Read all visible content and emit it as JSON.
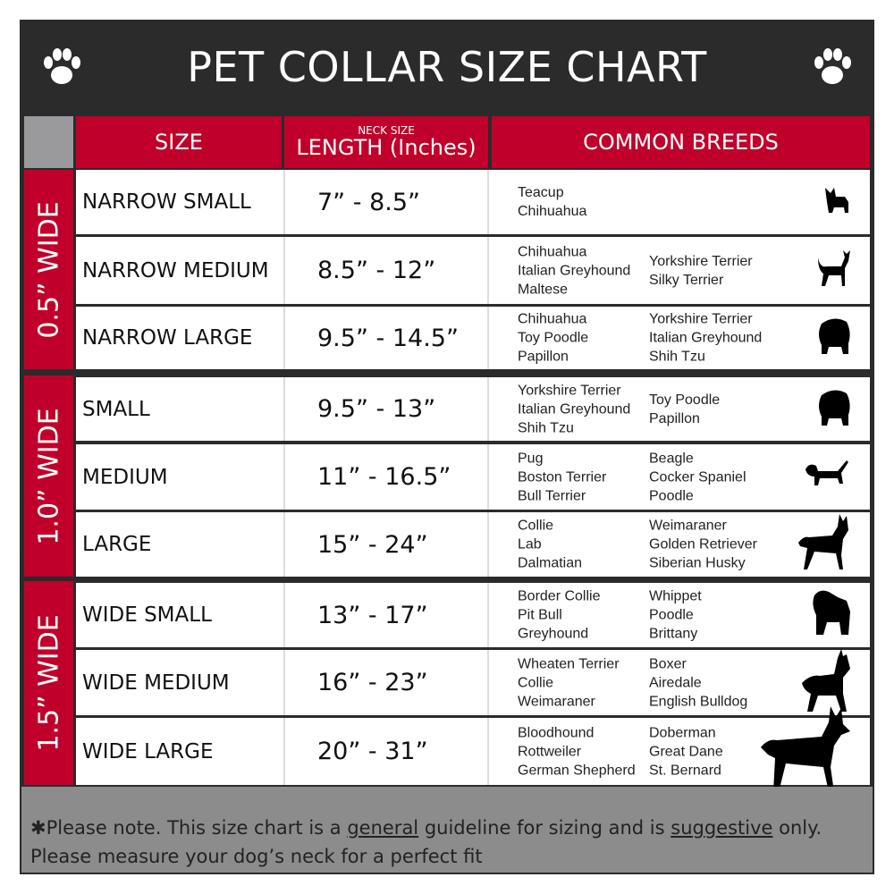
{
  "title": "PET COLLAR SIZE CHART",
  "colors": {
    "brand_red": "#c0002a",
    "frame_dark": "#2b2b2b",
    "footer_gray": "#8c8c8c"
  },
  "header": {
    "size": "SIZE",
    "neck_size": "NECK SIZE",
    "length": "LENGTH (Inches)",
    "breeds": "COMMON BREEDS"
  },
  "groups": [
    {
      "label": "0.5” WIDE",
      "rows": [
        {
          "size": "NARROW SMALL",
          "length": "7” - 8.5”",
          "breeds_col1": [
            "Teacup",
            "Chihuahua"
          ],
          "breeds_col2": [],
          "icon": "yorkie-silhouette-icon"
        },
        {
          "size": "NARROW MEDIUM",
          "length": "8.5” - 12”",
          "breeds_col1": [
            "Chihuahua",
            "Italian Greyhound",
            "Maltese"
          ],
          "breeds_col2": [
            "Yorkshire Terrier",
            "Silky Terrier"
          ],
          "icon": "chihuahua-silhouette-icon"
        },
        {
          "size": "NARROW LARGE",
          "length": "9.5” - 14.5”",
          "breeds_col1": [
            "Chihuahua",
            "Toy Poodle",
            "Papillon"
          ],
          "breeds_col2": [
            "Yorkshire Terrier",
            "Italian Greyhound",
            "Shih Tzu"
          ],
          "icon": "pomeranian-silhouette-icon"
        }
      ]
    },
    {
      "label": "1.0” WIDE",
      "rows": [
        {
          "size": "SMALL",
          "length": "9.5” - 13”",
          "breeds_col1": [
            "Yorkshire Terrier",
            "Italian Greyhound",
            "Shih Tzu"
          ],
          "breeds_col2": [
            "Toy Poodle",
            "Papillon"
          ],
          "icon": "pomeranian-silhouette-icon"
        },
        {
          "size": "MEDIUM",
          "length": "11” - 16.5”",
          "breeds_col1": [
            "Pug",
            "Boston Terrier",
            "Bull Terrier"
          ],
          "breeds_col2": [
            "Beagle",
            "Cocker Spaniel",
            "Poodle"
          ],
          "icon": "dachshund-silhouette-icon"
        },
        {
          "size": "LARGE",
          "length": "15” - 24”",
          "breeds_col1": [
            "Collie",
            "Lab",
            "Dalmatian"
          ],
          "breeds_col2": [
            "Weimaraner",
            "Golden Retriever",
            "Siberian Husky"
          ],
          "icon": "shepherd-silhouette-icon"
        }
      ]
    },
    {
      "label": "1.5” WIDE",
      "rows": [
        {
          "size": "WIDE SMALL",
          "length": "13” - 17”",
          "breeds_col1": [
            "Border Collie",
            "Pit Bull",
            "Greyhound"
          ],
          "breeds_col2": [
            "Whippet",
            "Poodle",
            "Brittany"
          ],
          "icon": "bulldog-silhouette-icon"
        },
        {
          "size": "WIDE MEDIUM",
          "length": "16” - 23”",
          "breeds_col1": [
            "Wheaten Terrier",
            "Collie",
            "Weimaraner"
          ],
          "breeds_col2": [
            "Boxer",
            "Airedale",
            "English Bulldog"
          ],
          "icon": "pitbull-silhouette-icon"
        },
        {
          "size": "WIDE LARGE",
          "length": "20” - 31”",
          "breeds_col1": [
            "Bloodhound",
            "Rottweiler",
            "German Shepherd"
          ],
          "breeds_col2": [
            "Doberman",
            "Great Dane",
            "St. Bernard"
          ],
          "icon": "doberman-silhouette-icon"
        }
      ]
    }
  ],
  "footer": {
    "p1": "✱Please note. This size chart is a ",
    "u1": "general",
    "p2": " guideline for sizing and is ",
    "u2": "suggestive",
    "p3": " only.",
    "line2": "Please measure your dog’s neck for a perfect fit"
  }
}
